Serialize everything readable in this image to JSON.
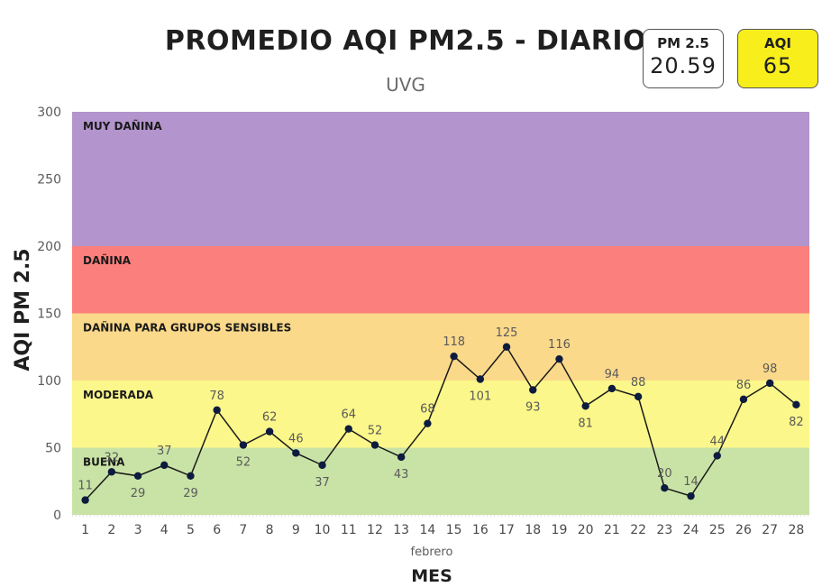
{
  "header": {
    "title": "PROMEDIO AQI PM2.5 - DIARIO",
    "subtitle": "UVG"
  },
  "cards": {
    "pm25": {
      "label": "PM 2.5",
      "value": "20.59"
    },
    "aqi": {
      "label": "AQI",
      "value": "65",
      "color": "#f7ee1c"
    }
  },
  "chart_data": {
    "type": "line",
    "title": "PROMEDIO AQI PM2.5 - DIARIO",
    "subtitle": "UVG",
    "xlabel": "MES",
    "xsublabel": "febrero",
    "ylabel": "AQI PM 2.5",
    "ylim": [
      0,
      300
    ],
    "yticks": [
      0,
      50,
      100,
      150,
      200,
      250,
      300
    ],
    "x": [
      1,
      2,
      3,
      4,
      5,
      6,
      7,
      8,
      9,
      10,
      11,
      12,
      13,
      14,
      15,
      16,
      17,
      18,
      19,
      20,
      21,
      22,
      23,
      24,
      25,
      26,
      27,
      28
    ],
    "series": [
      {
        "values": [
          11,
          32,
          29,
          37,
          29,
          78,
          52,
          62,
          46,
          37,
          64,
          52,
          43,
          68,
          118,
          101,
          125,
          93,
          116,
          81,
          94,
          88,
          20,
          14,
          44,
          86,
          98,
          82
        ],
        "color": "#1a1a1a",
        "marker_color": "#0d1b3e"
      }
    ],
    "label_positions": [
      "above",
      "above",
      "below",
      "above",
      "below",
      "above",
      "below",
      "above",
      "above",
      "below",
      "above",
      "above",
      "below",
      "above",
      "above",
      "below",
      "above",
      "below",
      "above",
      "below",
      "above",
      "above",
      "above",
      "above",
      "above",
      "above",
      "above",
      "below"
    ],
    "bands": [
      {
        "label": "BUENA",
        "from": 0,
        "to": 50,
        "color": "#c9e3a6"
      },
      {
        "label": "MODERADA",
        "from": 50,
        "to": 100,
        "color": "#fbf78a"
      },
      {
        "label": "DAÑINA PARA GRUPOS SENSIBLES",
        "from": 100,
        "to": 150,
        "color": "#fbd98a"
      },
      {
        "label": "DAÑINA",
        "from": 150,
        "to": 200,
        "color": "#fb7f7c"
      },
      {
        "label": "MUY DAÑINA",
        "from": 200,
        "to": 300,
        "color": "#b394cd"
      }
    ],
    "grid": false
  }
}
